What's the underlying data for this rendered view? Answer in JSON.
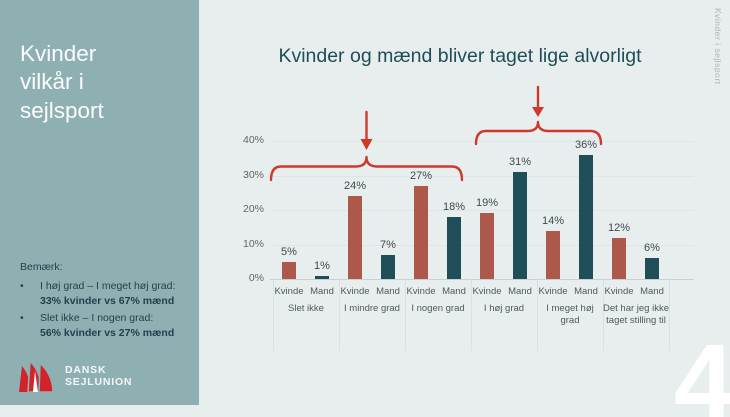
{
  "slide": {
    "background": "#E8EEEE",
    "page_number": "4",
    "side_label": "Kvinder i sejlsport"
  },
  "sidebar": {
    "background": "#8FB0B2",
    "title": "Kvinder vilkår i sejlsport",
    "note": {
      "heading": "Bemærk:",
      "bullets": [
        {
          "text": "I høj grad – I meget høj grad:",
          "bold": "33% kvinder vs 67% mænd"
        },
        {
          "text": "Slet ikke – I nogen grad:",
          "bold": "56% kvinder vs 27% mænd"
        }
      ]
    },
    "logo": {
      "line1": "DANSK",
      "line2": "SEJLUNION",
      "sail_color": "#D2232A"
    }
  },
  "chart_data": {
    "type": "bar",
    "title": "Kvinder og mænd bliver taget lige alvorligt",
    "categories": [
      "Slet ikke",
      "I mindre grad",
      "I nogen grad",
      "I høj grad",
      "I meget høj grad",
      "Det har jeg ikke taget stilling til"
    ],
    "series": [
      {
        "name": "Kvinde",
        "color": "#AC594B",
        "values": [
          5,
          24,
          27,
          19,
          14,
          12
        ]
      },
      {
        "name": "Mand",
        "color": "#1F4E59",
        "values": [
          1,
          7,
          18,
          31,
          36,
          6
        ]
      }
    ],
    "bar_sublabels": [
      "Kvinde",
      "Mand"
    ],
    "y_ticks": [
      "0%",
      "10%",
      "20%",
      "30%",
      "40%"
    ],
    "ylim": [
      0,
      40
    ],
    "grid": true,
    "legend": "none",
    "data_label_suffix": "%",
    "annotation_color": "#CE392C"
  }
}
